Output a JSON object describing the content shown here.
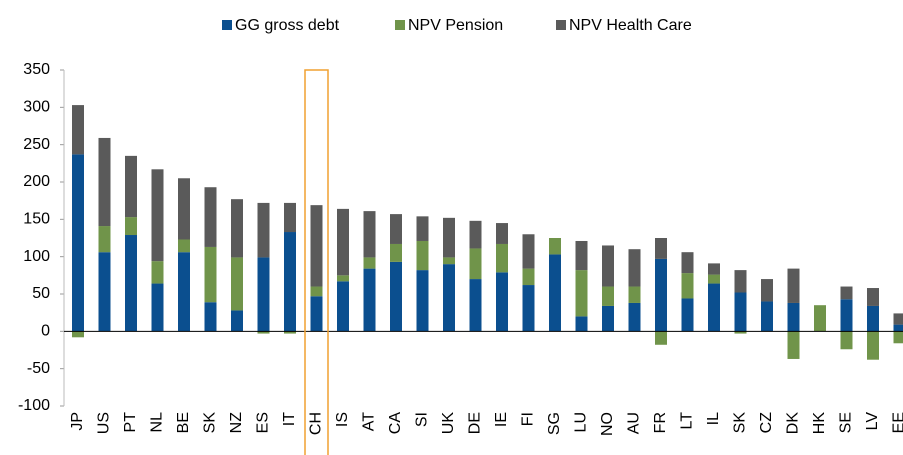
{
  "chart_data": {
    "type": "stacked-bar",
    "categories": [
      "JP",
      "US",
      "PT",
      "NL",
      "BE",
      "SK",
      "NZ",
      "ES",
      "IT",
      "CH",
      "IS",
      "AT",
      "CA",
      "SI",
      "UK",
      "DE",
      "IE",
      "FI",
      "SG",
      "LU",
      "NO",
      "AU",
      "FR",
      "LT",
      "IL",
      "SK",
      "CZ",
      "DK",
      "HK",
      "SE",
      "LV",
      "EE"
    ],
    "series": [
      {
        "name": "GG gross debt",
        "color": "#0b4f8f",
        "values": [
          237,
          106,
          129,
          64,
          106,
          39,
          28,
          99,
          133,
          47,
          67,
          84,
          93,
          82,
          90,
          70,
          79,
          62,
          103,
          20,
          34,
          38,
          97,
          44,
          64,
          52,
          40,
          38,
          0,
          43,
          34,
          9
        ]
      },
      {
        "name": "NPV Pension",
        "color": "#70944a",
        "values": [
          -8,
          35,
          24,
          30,
          17,
          74,
          71,
          -3,
          -3,
          13,
          8,
          15,
          24,
          39,
          9,
          41,
          38,
          22,
          22,
          62,
          26,
          22,
          -18,
          34,
          12,
          -3,
          0,
          -37,
          35,
          -24,
          -38,
          -16
        ]
      },
      {
        "name": "NPV Health Care",
        "color": "#5a5a5a",
        "values": [
          66,
          118,
          82,
          123,
          82,
          80,
          78,
          73,
          39,
          109,
          89,
          62,
          40,
          33,
          53,
          37,
          28,
          46,
          0,
          39,
          55,
          50,
          28,
          28,
          15,
          30,
          30,
          46,
          0,
          17,
          24,
          15
        ]
      }
    ],
    "ylim": [
      -100,
      350
    ],
    "yticks": [
      -100,
      -50,
      0,
      50,
      100,
      150,
      200,
      250,
      300,
      350
    ],
    "legend": "top"
  }
}
